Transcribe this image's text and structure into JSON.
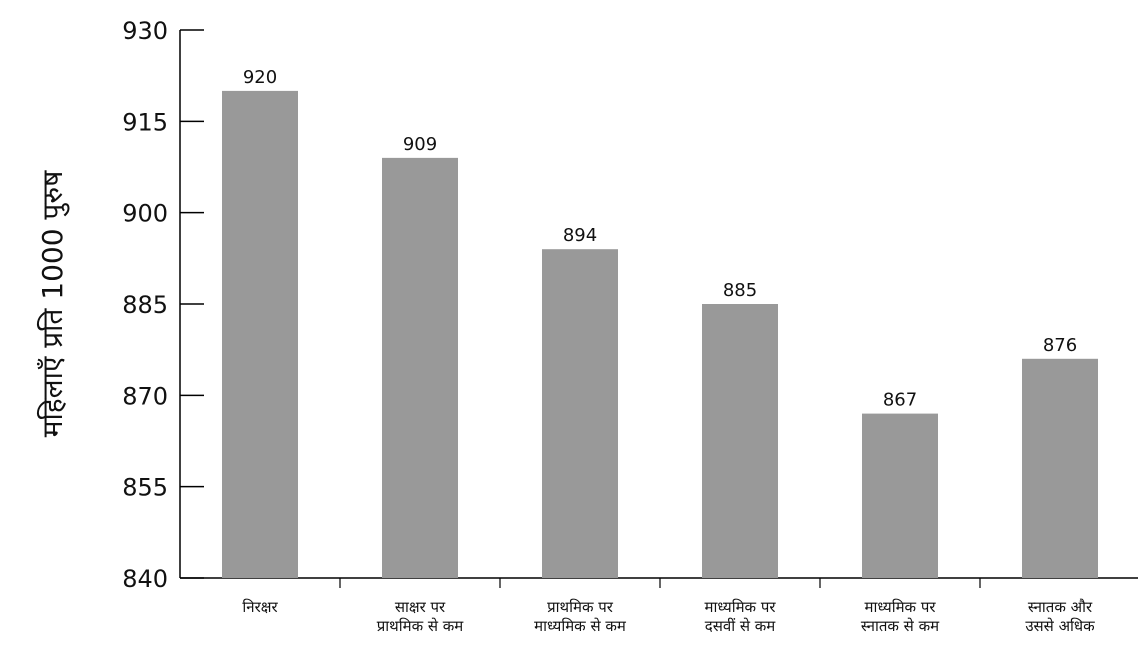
{
  "chart_data": {
    "type": "bar",
    "title": "",
    "xlabel": "",
    "ylabel": "महिलाएँ प्रति 1000 पुरुष",
    "ylim": [
      840,
      930
    ],
    "yticks": [
      840,
      855,
      870,
      885,
      900,
      915,
      930
    ],
    "categories": [
      [
        "निरक्षर"
      ],
      [
        "साक्षर पर",
        "प्राथमिक से कम"
      ],
      [
        "प्राथमिक पर",
        "माध्यमिक से कम"
      ],
      [
        "माध्यमिक पर",
        "दसवीं से कम"
      ],
      [
        "माध्यमिक पर",
        "स्नातक से कम"
      ],
      [
        "स्नातक और",
        "उससे अधिक"
      ]
    ],
    "values": [
      920,
      909,
      894,
      885,
      867,
      876
    ],
    "bar_color": "#999999",
    "axis_color": "#000000",
    "grid": false,
    "legend": "none"
  }
}
